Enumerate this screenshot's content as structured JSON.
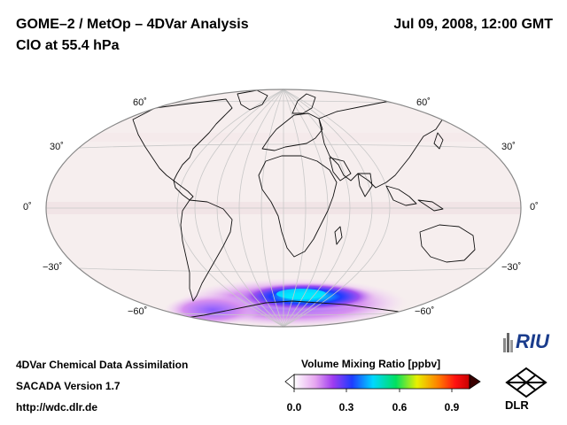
{
  "header": {
    "title": "GOME–2 / MetOp – 4DVar Analysis",
    "subtitle": "ClO at 55.4 hPa",
    "datetime": "Jul 09, 2008, 12:00 GMT"
  },
  "map": {
    "projection": "Hammer-Aitoff (global)",
    "lat_labels_left": [
      "60˚",
      "30˚",
      "0˚",
      "−30˚",
      "−60˚"
    ],
    "lat_labels_right": [
      "60˚",
      "30˚",
      "0˚",
      "−30˚",
      "−60˚"
    ],
    "background_color": "#f6eeee",
    "grid_color": "#cfcfcf",
    "feature": "Enhanced ClO over Antarctic / Southern Ocean polar vortex"
  },
  "footer": {
    "line1": "4DVar Chemical Data Assimilation",
    "line2": "SACADA Version 1.7",
    "line3": "http://wdc.dlr.de"
  },
  "colorbar": {
    "label": "Volume Mixing Ratio [ppbv]",
    "ticks": [
      "0.0",
      "0.3",
      "0.6",
      "0.9"
    ],
    "min": 0.0,
    "max": 1.0,
    "colors": [
      "#ffffff",
      "#e6a6f0",
      "#a03cf0",
      "#1e3cff",
      "#00d8ff",
      "#00e060",
      "#e8f000",
      "#ff8000",
      "#ff1010",
      "#c80000"
    ]
  },
  "logos": {
    "riu": "RIU",
    "dlr": "DLR"
  }
}
